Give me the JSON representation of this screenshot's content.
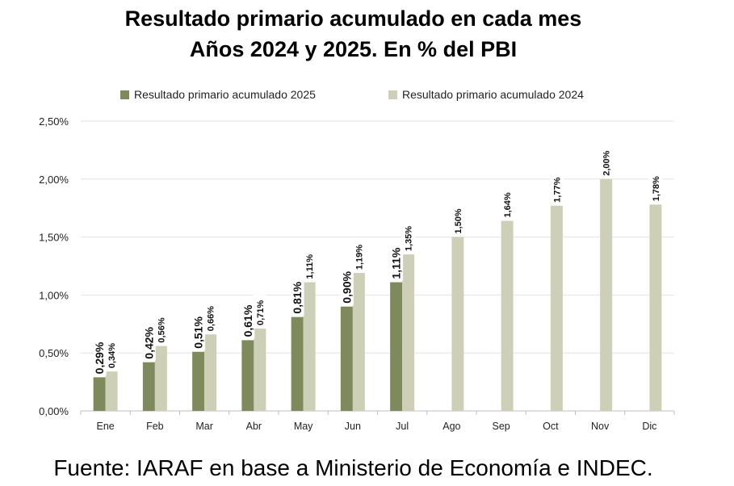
{
  "chart_data": {
    "type": "bar",
    "title_line1": "Resultado primario acumulado en cada mes",
    "title_line2": "Años 2024 y 2025. En % del PBI",
    "categories": [
      "Ene",
      "Feb",
      "Mar",
      "Abr",
      "May",
      "Jun",
      "Jul",
      "Ago",
      "Sep",
      "Oct",
      "Nov",
      "Dic"
    ],
    "series": [
      {
        "name": "Resultado primario acumulado 2025",
        "color": "#7f8a5c",
        "values": [
          0.29,
          0.42,
          0.51,
          0.61,
          0.81,
          0.9,
          1.11,
          null,
          null,
          null,
          null,
          null
        ],
        "labels": [
          "0,29%",
          "0,42%",
          "0,51%",
          "0,61%",
          "0,81%",
          "0,90%",
          "1,11%",
          null,
          null,
          null,
          null,
          null
        ]
      },
      {
        "name": "Resultado primario acumulado 2024",
        "color": "#cdd0b6",
        "values": [
          0.34,
          0.56,
          0.66,
          0.71,
          1.11,
          1.19,
          1.35,
          1.5,
          1.64,
          1.77,
          2.0,
          1.78
        ],
        "labels": [
          "0,34%",
          "0,56%",
          "0,66%",
          "0,71%",
          "1,11%",
          "1,19%",
          "1,35%",
          "1,50%",
          "1,64%",
          "1,77%",
          "2,00%",
          "1,78%"
        ]
      }
    ],
    "yticks": [
      0,
      0.5,
      1.0,
      1.5,
      2.0,
      2.5
    ],
    "ytick_labels": [
      "0,00%",
      "0,50%",
      "1,00%",
      "1,50%",
      "2,00%",
      "2,50%"
    ],
    "ylim": [
      0,
      2.5
    ],
    "grid": true,
    "legend_position": "top"
  },
  "source_text": "Fuente: IARAF en base a Ministerio de Economía e INDEC."
}
